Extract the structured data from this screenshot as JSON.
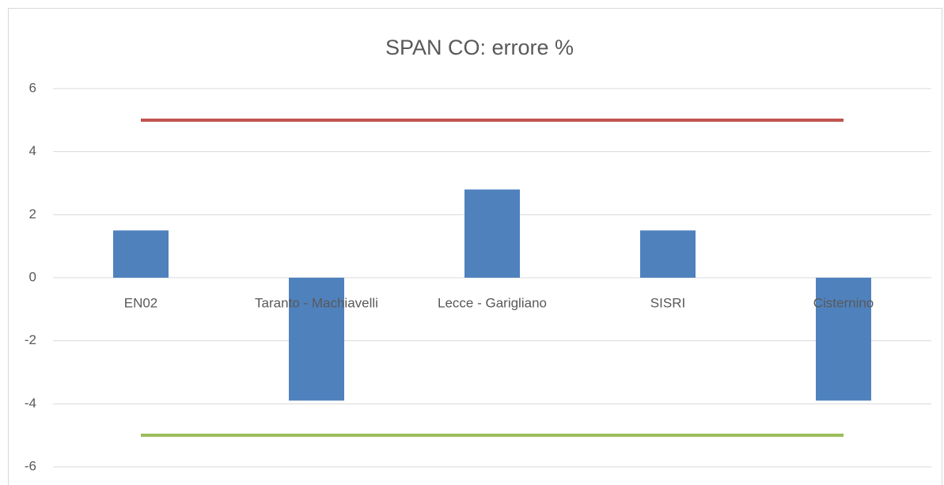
{
  "chart_data": {
    "type": "bar",
    "title": "SPAN CO: errore %",
    "categories": [
      "EN02",
      "Taranto - Machiavelli",
      "Lecce - Garigliano",
      "SISRI",
      "Cisternino"
    ],
    "series": [
      {
        "type": "bar",
        "color": "#4f81bd",
        "values": [
          1.5,
          -3.9,
          2.8,
          1.5,
          -3.9
        ]
      },
      {
        "type": "line",
        "color": "#c0504d",
        "values": [
          5,
          5,
          5,
          5,
          5
        ]
      },
      {
        "type": "line",
        "color": "#9bbb59",
        "values": [
          -5,
          -5,
          -5,
          -5,
          -5
        ]
      }
    ],
    "ylim": [
      -6,
      6
    ],
    "yticks": [
      -6,
      -4,
      -2,
      0,
      2,
      4,
      6
    ],
    "grid": true
  }
}
